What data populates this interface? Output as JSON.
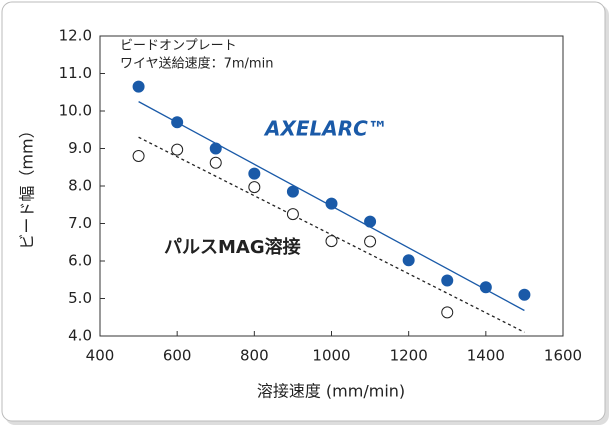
{
  "chart_data": {
    "type": "scatter",
    "annotations": [
      "ビードオンプレート",
      "ワイヤ送給速度：7m/min"
    ],
    "x_label": "溶接速度 (mm/min)",
    "y_label": "ビード幅（mm）",
    "xlim": [
      400,
      1600
    ],
    "xticks": [
      400,
      600,
      800,
      1000,
      1200,
      1400,
      1600
    ],
    "ylim": [
      4,
      12
    ],
    "yticks": [
      {
        "value": 4,
        "label": "4.0"
      },
      {
        "value": 5,
        "label": "5.0"
      },
      {
        "value": 6,
        "label": "6.0"
      },
      {
        "value": 7,
        "label": "7.0"
      },
      {
        "value": 8,
        "label": "8.0"
      },
      {
        "value": 9,
        "label": "9.0"
      },
      {
        "value": 10,
        "label": "10.0"
      },
      {
        "value": 11,
        "label": "11.0"
      },
      {
        "value": 12,
        "label": "12.0"
      }
    ],
    "series": [
      {
        "name": "AXELARC™",
        "color": "#1a5aa8",
        "marker": "filled",
        "x": [
          500,
          600,
          700,
          800,
          900,
          1000,
          1100,
          1200,
          1300,
          1400,
          1500
        ],
        "values": [
          10.65,
          9.7,
          9.0,
          8.33,
          7.85,
          7.53,
          7.05,
          6.02,
          5.48,
          5.3,
          5.1
        ],
        "trend": {
          "x": [
            500,
            1500
          ],
          "values": [
            10.25,
            4.68
          ],
          "dash": false
        }
      },
      {
        "name": "パルスMAG溶接",
        "color": "#222222",
        "marker": "open",
        "x": [
          500,
          600,
          700,
          800,
          900,
          1000,
          1100,
          1300
        ],
        "values": [
          8.8,
          8.97,
          8.62,
          7.97,
          7.25,
          6.53,
          6.52,
          4.63
        ],
        "trend": {
          "x": [
            500,
            1500
          ],
          "values": [
            9.3,
            4.1
          ],
          "dash": true
        }
      }
    ]
  }
}
